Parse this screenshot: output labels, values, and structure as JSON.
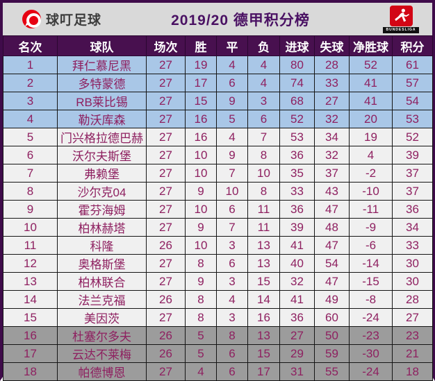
{
  "header": {
    "app_logo_text": "球叮足球",
    "title": "2019/20 德甲积分榜",
    "league_logo_text": "BUNDESLIGA"
  },
  "colors": {
    "frame_border": "#3f0b4a",
    "topbar_bg": "#d9d9d9",
    "title_text": "#4a1163",
    "table_header_bg": "#48104f",
    "table_header_text": "#ffffff",
    "champions_zone_bg": "#a9c7e7",
    "mid_zone_bg": "#f0f0f0",
    "relegation_zone_bg": "#9c9c9c",
    "body_text": "#8e2060",
    "app_logo_red": "#e60012",
    "bundesliga_red": "#d20515"
  },
  "table": {
    "columns": [
      "名次",
      "球队",
      "场次",
      "胜",
      "平",
      "负",
      "进球",
      "失球",
      "净胜球",
      "积分"
    ],
    "rows": [
      {
        "zone": "ucl",
        "cells": [
          "1",
          "拜仁慕尼黑",
          "27",
          "19",
          "4",
          "4",
          "80",
          "28",
          "52",
          "61"
        ]
      },
      {
        "zone": "ucl",
        "cells": [
          "2",
          "多特蒙德",
          "27",
          "17",
          "6",
          "4",
          "74",
          "33",
          "41",
          "57"
        ]
      },
      {
        "zone": "ucl",
        "cells": [
          "3",
          "RB莱比锡",
          "27",
          "15",
          "9",
          "3",
          "68",
          "27",
          "41",
          "54"
        ]
      },
      {
        "zone": "ucl",
        "cells": [
          "4",
          "勒沃库森",
          "27",
          "16",
          "5",
          "6",
          "52",
          "32",
          "20",
          "53"
        ]
      },
      {
        "zone": "mid",
        "cells": [
          "5",
          "门兴格拉德巴赫",
          "27",
          "16",
          "4",
          "7",
          "53",
          "34",
          "19",
          "52"
        ]
      },
      {
        "zone": "mid",
        "cells": [
          "6",
          "沃尔夫斯堡",
          "27",
          "10",
          "9",
          "8",
          "36",
          "32",
          "4",
          "39"
        ]
      },
      {
        "zone": "mid",
        "cells": [
          "7",
          "弗赖堡",
          "27",
          "10",
          "7",
          "10",
          "35",
          "37",
          "-2",
          "37"
        ]
      },
      {
        "zone": "mid",
        "cells": [
          "8",
          "沙尔克04",
          "27",
          "9",
          "10",
          "8",
          "33",
          "43",
          "-10",
          "37"
        ]
      },
      {
        "zone": "mid",
        "cells": [
          "9",
          "霍芬海姆",
          "27",
          "10",
          "6",
          "11",
          "36",
          "47",
          "-11",
          "36"
        ]
      },
      {
        "zone": "mid",
        "cells": [
          "10",
          "柏林赫塔",
          "27",
          "9",
          "7",
          "11",
          "39",
          "48",
          "-9",
          "34"
        ]
      },
      {
        "zone": "mid",
        "cells": [
          "11",
          "科隆",
          "26",
          "10",
          "3",
          "13",
          "41",
          "47",
          "-6",
          "33"
        ]
      },
      {
        "zone": "mid",
        "cells": [
          "12",
          "奥格斯堡",
          "27",
          "8",
          "6",
          "13",
          "40",
          "54",
          "-14",
          "30"
        ]
      },
      {
        "zone": "mid",
        "cells": [
          "13",
          "柏林联合",
          "27",
          "9",
          "3",
          "15",
          "32",
          "47",
          "-15",
          "30"
        ]
      },
      {
        "zone": "mid",
        "cells": [
          "14",
          "法兰克福",
          "26",
          "8",
          "4",
          "14",
          "41",
          "49",
          "-8",
          "28"
        ]
      },
      {
        "zone": "mid",
        "cells": [
          "15",
          "美因茨",
          "27",
          "8",
          "3",
          "16",
          "36",
          "60",
          "-24",
          "27"
        ]
      },
      {
        "zone": "releg",
        "cells": [
          "16",
          "杜塞尔多夫",
          "26",
          "5",
          "8",
          "13",
          "27",
          "50",
          "-23",
          "23"
        ]
      },
      {
        "zone": "releg",
        "cells": [
          "17",
          "云达不莱梅",
          "26",
          "5",
          "6",
          "15",
          "29",
          "59",
          "-30",
          "21"
        ]
      },
      {
        "zone": "releg",
        "cells": [
          "18",
          "帕德博恩",
          "27",
          "4",
          "6",
          "17",
          "31",
          "55",
          "-24",
          "18"
        ]
      }
    ]
  }
}
